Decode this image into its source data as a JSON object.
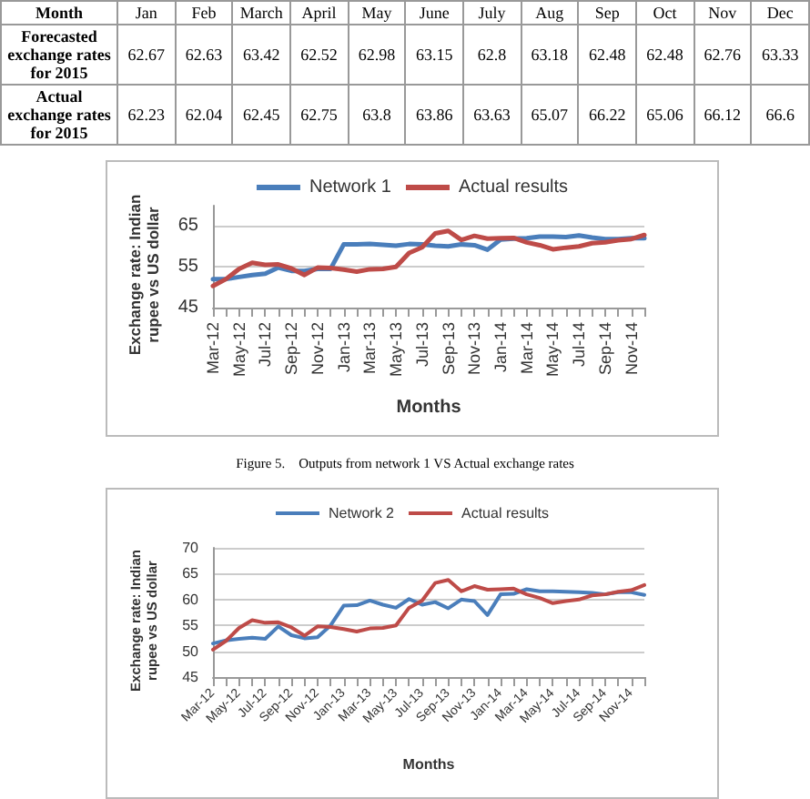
{
  "chart_data": [
    {
      "type": "other",
      "xlabel": "Month",
      "categories": [
        "Jan",
        "Feb",
        "March",
        "April",
        "May",
        "June",
        "July",
        "Aug",
        "Sep",
        "Oct",
        "Nov",
        "Dec"
      ],
      "data_labels": true,
      "series": [
        {
          "name": "Forecasted exchange rates for 2015",
          "values": [
            62.67,
            62.63,
            63.42,
            62.52,
            62.98,
            63.15,
            62.8,
            63.18,
            62.48,
            62.48,
            62.76,
            63.33
          ]
        },
        {
          "name": "Actual exchange rates for 2015",
          "values": [
            62.23,
            62.04,
            62.45,
            62.75,
            63.8,
            63.86,
            63.63,
            65.07,
            66.22,
            65.06,
            66.12,
            66.6
          ]
        }
      ]
    },
    {
      "type": "line",
      "xlabel": "Months",
      "ylabel": "Exchange  rate: Indian rupee vs US dollar",
      "annotations": [
        "Figure 5.    Outputs from network 1 VS Actual exchange rates"
      ],
      "categories": [
        "Mar-12",
        null,
        "May-12",
        null,
        "Jul-12",
        null,
        "Sep-12",
        null,
        "Nov-12",
        null,
        "Jan-13",
        null,
        "Mar-13",
        null,
        "May-13",
        null,
        "Jul-13",
        null,
        "Sep-13",
        null,
        "Nov-13",
        null,
        "Jan-14",
        null,
        "Mar-14",
        null,
        "May-14",
        null,
        "Jul-14",
        null,
        "Sep-14",
        null,
        "Nov-14",
        null
      ],
      "ylim": [
        45,
        70
      ],
      "yticks": [
        45,
        55,
        65
      ],
      "grid": "y",
      "legend": "top",
      "marker": "none",
      "line_style": "solid",
      "series": [
        {
          "name": "Network 1",
          "color": "#4a7ebb",
          "values": [
            52,
            52,
            52.5,
            53,
            53.3,
            54.8,
            54,
            54,
            54.5,
            54.5,
            60.5,
            60.5,
            60.6,
            60.4,
            60.2,
            60.6,
            60.5,
            60.2,
            60,
            60.5,
            60.3,
            59.2,
            61.7,
            61.9,
            62,
            62.4,
            62.4,
            62.3,
            62.7,
            62.2,
            61.8,
            61.8,
            62,
            62
          ]
        },
        {
          "name": "Actual results",
          "color": "#be4b48",
          "values": [
            50.3,
            52,
            54.5,
            56,
            55.5,
            55.6,
            54.6,
            53,
            54.8,
            54.7,
            54.3,
            53.8,
            54.4,
            54.5,
            55,
            58.4,
            59.8,
            63.2,
            63.8,
            61.6,
            62.6,
            61.9,
            62,
            62.1,
            61,
            60.3,
            59.3,
            59.7,
            60,
            60.8,
            61,
            61.5,
            61.8,
            62.8
          ]
        }
      ]
    },
    {
      "type": "line",
      "xlabel": "Months",
      "ylabel": "Exchange  rate: Indian rupee vs US dollar",
      "categories": [
        "Mar-12",
        null,
        "May-12",
        null,
        "Jul-12",
        null,
        "Sep-12",
        null,
        "Nov-12",
        null,
        "Jan-13",
        null,
        "Mar-13",
        null,
        "May-13",
        null,
        "Jul-13",
        null,
        "Sep-13",
        null,
        "Nov-13",
        null,
        "Jan-14",
        null,
        "Mar-14",
        null,
        "May-14",
        null,
        "Jul-14",
        null,
        "Sep-14",
        null,
        "Nov-14",
        null
      ],
      "ylim": [
        45,
        70
      ],
      "yticks": [
        45,
        50,
        55,
        60,
        65,
        70
      ],
      "grid": "y",
      "legend": "top",
      "marker": "none",
      "line_style": "solid",
      "series": [
        {
          "name": "Network 2",
          "color": "#4a7ebb",
          "values": [
            51.5,
            52.1,
            52.4,
            52.6,
            52.4,
            54.8,
            53.1,
            52.5,
            52.7,
            55,
            58.8,
            58.9,
            59.8,
            59,
            58.4,
            60.1,
            59,
            59.5,
            58.3,
            60,
            59.7,
            57,
            61,
            61.1,
            62,
            61.6,
            61.6,
            61.5,
            61.4,
            61.3,
            61,
            61.4,
            61.4,
            60.9
          ]
        },
        {
          "name": "Actual results",
          "color": "#be4b48",
          "values": [
            50.3,
            52,
            54.5,
            56,
            55.5,
            55.6,
            54.6,
            53,
            54.8,
            54.7,
            54.3,
            53.8,
            54.4,
            54.5,
            55,
            58.4,
            59.8,
            63.2,
            63.8,
            61.6,
            62.6,
            61.9,
            62,
            62.1,
            61,
            60.3,
            59.3,
            59.7,
            60,
            60.8,
            61,
            61.5,
            61.8,
            62.8
          ]
        }
      ]
    }
  ]
}
